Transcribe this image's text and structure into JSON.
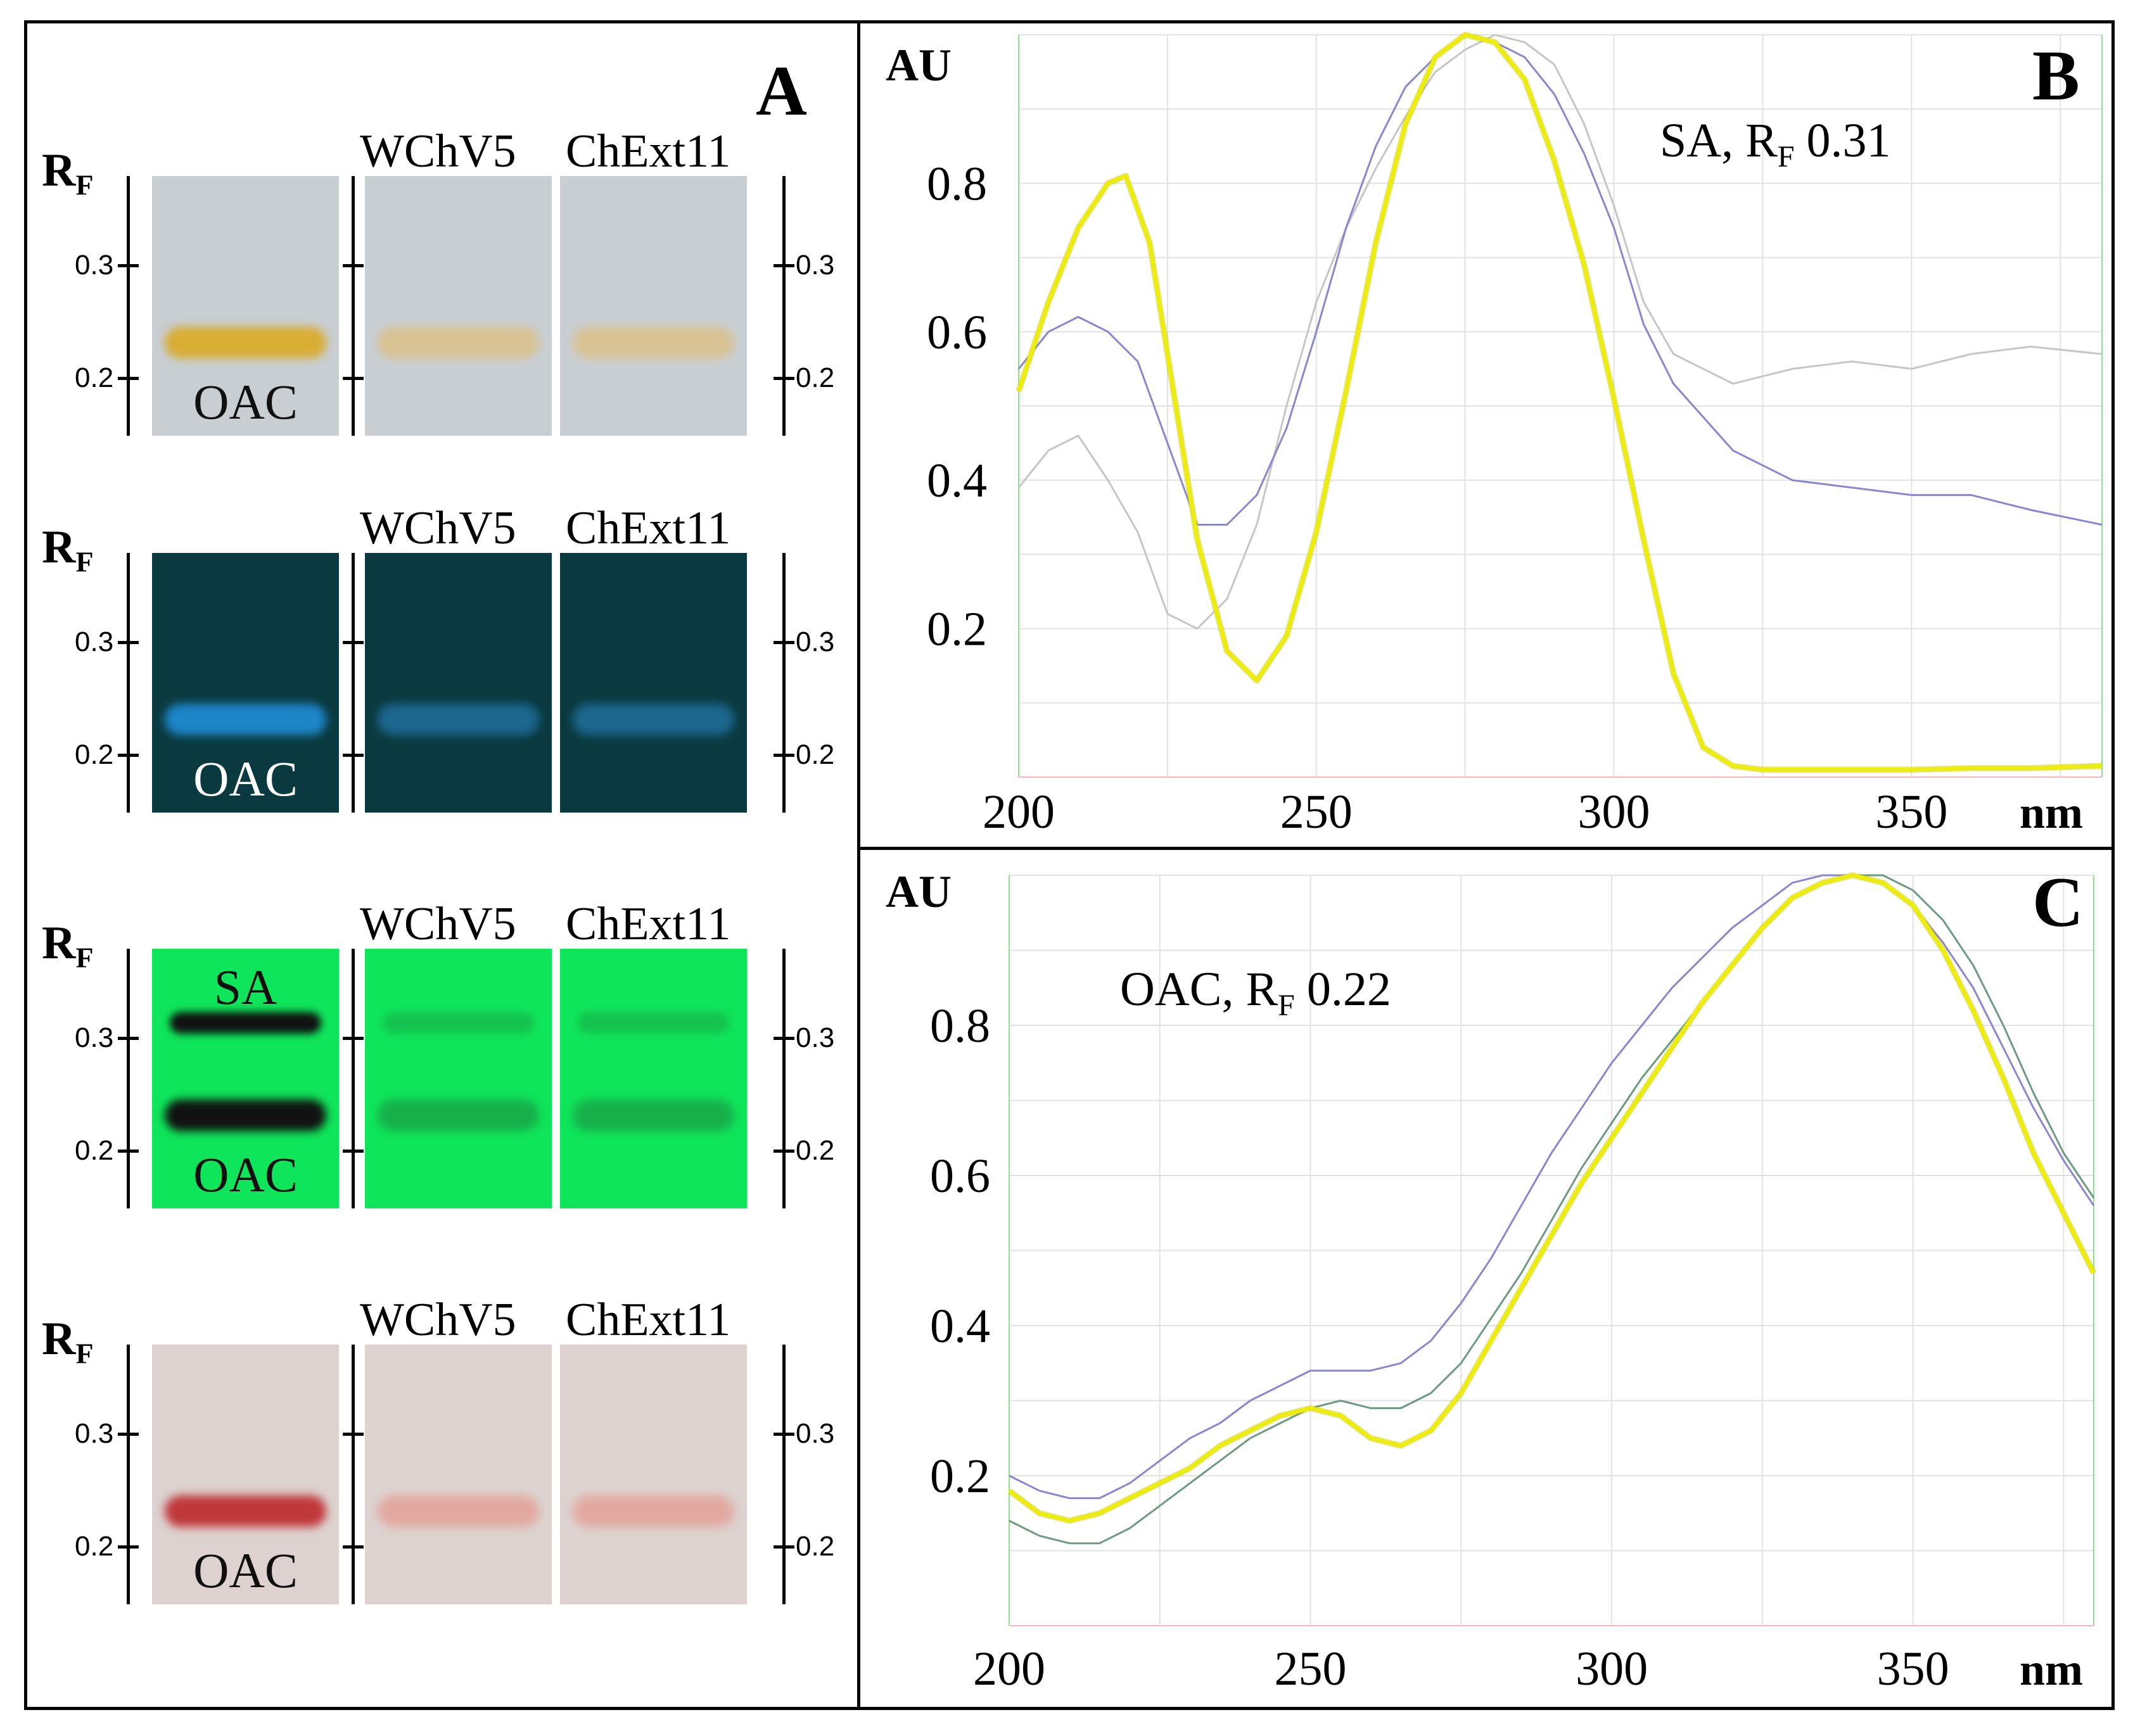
{
  "panel_a": {
    "letter": "A",
    "rows": [
      {
        "rf_label": "R",
        "rf_sub": "F",
        "lanes": [
          "WChV5",
          "ChExt11"
        ],
        "ref_top_label": "",
        "ref_bottom_label": "OAC",
        "ticks": [
          "0.3",
          "0.2"
        ],
        "colors": {
          "bg": "#c9ced2",
          "band": "#d9ad32",
          "lane_band": "#dcc189",
          "text": "#101010"
        }
      },
      {
        "rf_label": "R",
        "rf_sub": "F",
        "lanes": [
          "WChV5",
          "ChExt11"
        ],
        "ref_top_label": "",
        "ref_bottom_label": "OAC",
        "ticks": [
          "0.3",
          "0.2"
        ],
        "colors": {
          "bg": "#0a3a3f",
          "band": "#1d86c9",
          "lane_band": "#1e6f9c",
          "text": "#ffffff"
        }
      },
      {
        "rf_label": "R",
        "rf_sub": "F",
        "lanes": [
          "WChV5",
          "ChExt11"
        ],
        "ref_top_label": "SA",
        "ref_bottom_label": "OAC",
        "ticks": [
          "0.3",
          "0.2"
        ],
        "colors": {
          "bg": "#0fe55a",
          "band": "#111111",
          "lane_band": "#17a748",
          "text": "#101010"
        }
      },
      {
        "rf_label": "R",
        "rf_sub": "F",
        "lanes": [
          "WChV5",
          "ChExt11"
        ],
        "ref_top_label": "",
        "ref_bottom_label": "OAC",
        "ticks": [
          "0.3",
          "0.2"
        ],
        "colors": {
          "bg": "#ddd2cf",
          "band": "#c0383a",
          "lane_band": "#e4a29a",
          "text": "#101010"
        }
      }
    ]
  },
  "chart_data": [
    {
      "type": "line",
      "panel_letter": "B",
      "annotation": "SA, R",
      "annotation_sub": "F",
      "annotation_value": " 0.31",
      "ylabel": "AU",
      "xunit": "nm",
      "xlim": [
        200,
        382
      ],
      "ylim": [
        0,
        1.0
      ],
      "x_ticks": [
        200,
        250,
        300,
        350
      ],
      "y_ticks": [
        0.2,
        0.4,
        0.6,
        0.8
      ],
      "grid": true,
      "series": [
        {
          "color": "#ecec10",
          "x": [
            200,
            205,
            210,
            215,
            218,
            222,
            226,
            230,
            235,
            240,
            245,
            250,
            255,
            260,
            265,
            270,
            275,
            280,
            285,
            290,
            295,
            300,
            305,
            310,
            315,
            320,
            325,
            330,
            340,
            350,
            360,
            370,
            382
          ],
          "y": [
            0.52,
            0.64,
            0.74,
            0.8,
            0.81,
            0.72,
            0.52,
            0.32,
            0.17,
            0.13,
            0.19,
            0.33,
            0.52,
            0.72,
            0.88,
            0.97,
            1.0,
            0.99,
            0.94,
            0.83,
            0.69,
            0.51,
            0.32,
            0.14,
            0.04,
            0.015,
            0.01,
            0.01,
            0.01,
            0.01,
            0.012,
            0.012,
            0.015
          ]
        },
        {
          "color": "#8a86cf",
          "x": [
            200,
            205,
            210,
            215,
            220,
            225,
            230,
            235,
            240,
            245,
            250,
            255,
            260,
            265,
            270,
            275,
            280,
            285,
            290,
            295,
            300,
            305,
            310,
            320,
            330,
            340,
            350,
            360,
            370,
            382
          ],
          "y": [
            0.55,
            0.6,
            0.62,
            0.6,
            0.56,
            0.45,
            0.34,
            0.34,
            0.38,
            0.47,
            0.6,
            0.74,
            0.85,
            0.93,
            0.97,
            1.0,
            0.99,
            0.97,
            0.92,
            0.84,
            0.74,
            0.61,
            0.53,
            0.44,
            0.4,
            0.39,
            0.38,
            0.38,
            0.36,
            0.34
          ]
        },
        {
          "color": "#c6c6c6",
          "x": [
            200,
            205,
            210,
            215,
            220,
            225,
            230,
            235,
            240,
            245,
            250,
            255,
            260,
            265,
            270,
            275,
            280,
            285,
            290,
            295,
            300,
            305,
            310,
            320,
            330,
            340,
            350,
            360,
            370,
            382
          ],
          "y": [
            0.39,
            0.44,
            0.46,
            0.4,
            0.33,
            0.22,
            0.2,
            0.24,
            0.34,
            0.5,
            0.64,
            0.74,
            0.82,
            0.89,
            0.95,
            0.98,
            1.0,
            0.99,
            0.96,
            0.88,
            0.77,
            0.64,
            0.57,
            0.53,
            0.55,
            0.56,
            0.55,
            0.57,
            0.58,
            0.57
          ]
        }
      ]
    },
    {
      "type": "line",
      "panel_letter": "C",
      "annotation": "OAC, R",
      "annotation_sub": "F",
      "annotation_value": " 0.22",
      "ylabel": "AU",
      "xunit": "nm",
      "xlim": [
        200,
        380
      ],
      "ylim": [
        0,
        1.0
      ],
      "x_ticks": [
        200,
        250,
        300,
        350
      ],
      "y_ticks": [
        0.2,
        0.4,
        0.6,
        0.8
      ],
      "grid": true,
      "series": [
        {
          "color": "#ecec10",
          "x": [
            200,
            205,
            210,
            215,
            220,
            225,
            230,
            235,
            240,
            245,
            250,
            255,
            260,
            265,
            270,
            275,
            280,
            285,
            290,
            295,
            300,
            305,
            310,
            315,
            320,
            325,
            330,
            335,
            340,
            345,
            350,
            355,
            360,
            365,
            370,
            375,
            380
          ],
          "y": [
            0.18,
            0.15,
            0.14,
            0.15,
            0.17,
            0.19,
            0.21,
            0.24,
            0.26,
            0.28,
            0.29,
            0.28,
            0.25,
            0.24,
            0.26,
            0.31,
            0.38,
            0.45,
            0.52,
            0.59,
            0.65,
            0.71,
            0.77,
            0.83,
            0.88,
            0.93,
            0.97,
            0.99,
            1.0,
            0.99,
            0.96,
            0.9,
            0.82,
            0.73,
            0.63,
            0.55,
            0.47
          ]
        },
        {
          "color": "#8a86cf",
          "x": [
            200,
            205,
            210,
            215,
            220,
            225,
            230,
            235,
            240,
            245,
            250,
            255,
            260,
            265,
            270,
            275,
            280,
            285,
            290,
            295,
            300,
            305,
            310,
            315,
            320,
            325,
            330,
            335,
            340,
            345,
            350,
            355,
            360,
            365,
            370,
            375,
            380
          ],
          "y": [
            0.2,
            0.18,
            0.17,
            0.17,
            0.19,
            0.22,
            0.25,
            0.27,
            0.3,
            0.32,
            0.34,
            0.34,
            0.34,
            0.35,
            0.38,
            0.43,
            0.49,
            0.56,
            0.63,
            0.69,
            0.75,
            0.8,
            0.85,
            0.89,
            0.93,
            0.96,
            0.99,
            1.0,
            1.0,
            0.99,
            0.96,
            0.91,
            0.85,
            0.77,
            0.69,
            0.62,
            0.56
          ]
        },
        {
          "color": "#6e9a82",
          "x": [
            200,
            205,
            210,
            215,
            220,
            225,
            230,
            235,
            240,
            245,
            250,
            255,
            260,
            265,
            270,
            275,
            280,
            285,
            290,
            295,
            300,
            305,
            310,
            315,
            320,
            325,
            330,
            335,
            340,
            345,
            350,
            355,
            360,
            365,
            370,
            375,
            380
          ],
          "y": [
            0.14,
            0.12,
            0.11,
            0.11,
            0.13,
            0.16,
            0.19,
            0.22,
            0.25,
            0.27,
            0.29,
            0.3,
            0.29,
            0.29,
            0.31,
            0.35,
            0.41,
            0.47,
            0.54,
            0.61,
            0.67,
            0.73,
            0.78,
            0.83,
            0.88,
            0.93,
            0.97,
            0.99,
            1.0,
            1.0,
            0.98,
            0.94,
            0.88,
            0.8,
            0.71,
            0.63,
            0.57
          ]
        }
      ]
    }
  ]
}
